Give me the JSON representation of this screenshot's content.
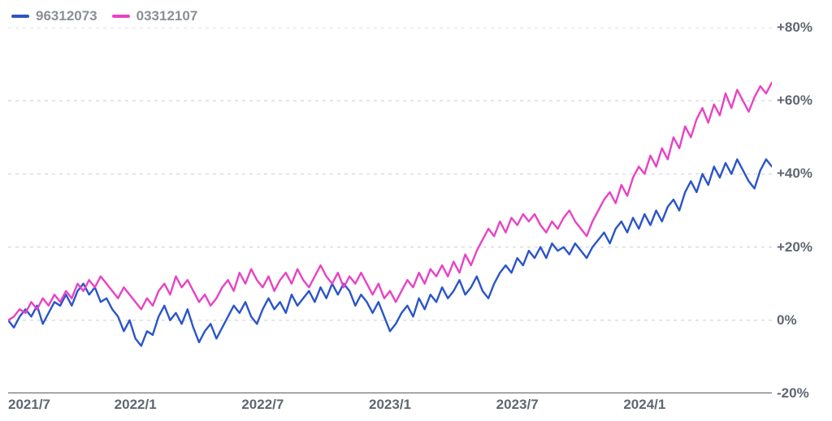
{
  "chart": {
    "type": "line",
    "background_color": "#ffffff",
    "grid_color": "#d7d9dd",
    "grid_dash": "4 5",
    "axis_line_color": "#6f7378",
    "label_color": "#606770",
    "legend_text_color": "#8b8f96",
    "label_fontsize": 17,
    "legend_fontsize": 17,
    "line_width": 2.4,
    "y_range": [
      -20,
      80
    ],
    "y_ticks": [
      -20,
      0,
      20,
      40,
      60,
      80
    ],
    "y_tick_labels": [
      "-20%",
      "0%",
      "+20%",
      "+40%",
      "+60%",
      "+80%"
    ],
    "x_range": [
      0,
      36
    ],
    "x_ticks": [
      0,
      6,
      12,
      18,
      24,
      30
    ],
    "x_tick_labels": [
      "2021/7",
      "2022/1",
      "2022/7",
      "2023/1",
      "2023/7",
      "2024/1"
    ],
    "series": [
      {
        "id": "96312073",
        "label": "96312073",
        "color": "#2b55c8",
        "data": [
          0,
          -2,
          1,
          3,
          1,
          4,
          -1,
          2,
          5,
          4,
          7,
          4,
          8,
          10,
          7,
          9,
          5,
          6,
          3,
          1,
          -3,
          0,
          -5,
          -7,
          -3,
          -4,
          1,
          4,
          0,
          2,
          -1,
          3,
          -2,
          -6,
          -3,
          -1,
          -5,
          -2,
          1,
          4,
          2,
          5,
          1,
          -1,
          3,
          6,
          3,
          5,
          2,
          7,
          4,
          6,
          8,
          5,
          9,
          6,
          10,
          7,
          10,
          8,
          4,
          7,
          5,
          2,
          5,
          1,
          -3,
          -1,
          2,
          4,
          1,
          6,
          3,
          7,
          5,
          9,
          6,
          8,
          11,
          7,
          9,
          12,
          8,
          6,
          10,
          13,
          15,
          13,
          17,
          15,
          19,
          17,
          20,
          17,
          21,
          19,
          20,
          18,
          21,
          19,
          17,
          20,
          22,
          24,
          21,
          25,
          27,
          24,
          28,
          25,
          29,
          26,
          30,
          27,
          31,
          33,
          30,
          35,
          38,
          35,
          40,
          37,
          42,
          39,
          43,
          40,
          44,
          41,
          38,
          36,
          41,
          44,
          42
        ]
      },
      {
        "id": "03312107",
        "label": "03312107",
        "color": "#e743c4",
        "data": [
          0,
          1,
          3,
          2,
          5,
          3,
          6,
          4,
          7,
          5,
          8,
          6,
          10,
          8,
          11,
          9,
          12,
          10,
          8,
          6,
          9,
          7,
          5,
          3,
          6,
          4,
          8,
          10,
          7,
          12,
          9,
          11,
          8,
          5,
          7,
          4,
          6,
          9,
          11,
          8,
          13,
          10,
          14,
          11,
          9,
          12,
          8,
          11,
          13,
          10,
          14,
          11,
          9,
          12,
          15,
          12,
          10,
          13,
          9,
          12,
          10,
          13,
          10,
          7,
          10,
          6,
          8,
          5,
          8,
          11,
          9,
          13,
          10,
          14,
          12,
          15,
          12,
          16,
          13,
          18,
          15,
          19,
          22,
          25,
          23,
          27,
          24,
          28,
          26,
          29,
          27,
          29,
          26,
          24,
          27,
          25,
          28,
          30,
          27,
          25,
          23,
          27,
          30,
          33,
          35,
          32,
          37,
          34,
          39,
          42,
          40,
          45,
          42,
          47,
          44,
          50,
          47,
          53,
          50,
          55,
          58,
          54,
          59,
          56,
          62,
          58,
          63,
          60,
          57,
          61,
          64,
          62,
          65
        ]
      }
    ]
  }
}
